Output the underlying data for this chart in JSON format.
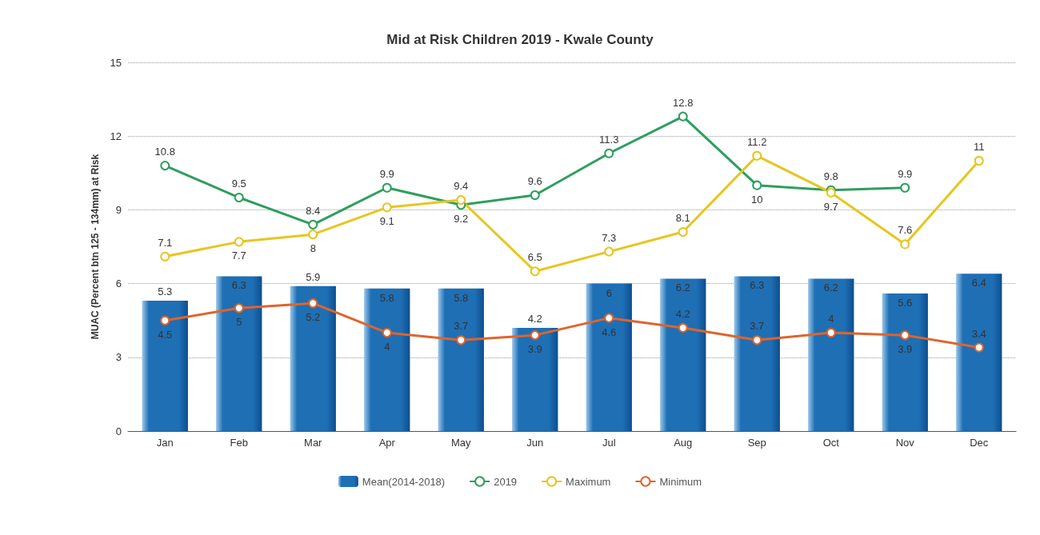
{
  "chart_data": {
    "type": "bar",
    "title": "Mid at Risk Children 2019 - Kwale County",
    "ylabel": "MUAC (Percent btn 125 - 134mm) at Risk",
    "categories": [
      "Jan",
      "Feb",
      "Mar",
      "Apr",
      "May",
      "Jun",
      "Jul",
      "Aug",
      "Sep",
      "Oct",
      "Nov",
      "Dec"
    ],
    "series": [
      {
        "name": "Mean(2014-2018)",
        "color": "#1f6fb5",
        "values": [
          5.3,
          6.3,
          5.9,
          5.8,
          5.8,
          4.2,
          6,
          6.2,
          6.3,
          6.2,
          5.6,
          6.4
        ]
      },
      {
        "name": "2019",
        "type": "line",
        "color": "#2e9e5e",
        "values": [
          10.8,
          9.5,
          8.4,
          9.9,
          9.2,
          9.6,
          11.3,
          12.8,
          10,
          9.8,
          9.9,
          null
        ]
      },
      {
        "name": "Maximum",
        "type": "line",
        "color": "#e8c520",
        "values": [
          7.1,
          7.7,
          8,
          9.1,
          9.4,
          6.5,
          7.3,
          8.1,
          11.2,
          9.7,
          7.6,
          11
        ]
      },
      {
        "name": "Minimum",
        "type": "line",
        "color": "#e0642a",
        "values": [
          4.5,
          5,
          5.2,
          4,
          3.7,
          3.9,
          4.6,
          4.2,
          3.7,
          4,
          3.9,
          3.4
        ]
      }
    ],
    "ylim": [
      0,
      15
    ],
    "yticks": [
      0,
      3,
      6,
      9,
      12,
      15
    ],
    "grid": "y",
    "legend": "bottom",
    "marker": "circle",
    "line_style": "solid",
    "data_labels": true
  }
}
